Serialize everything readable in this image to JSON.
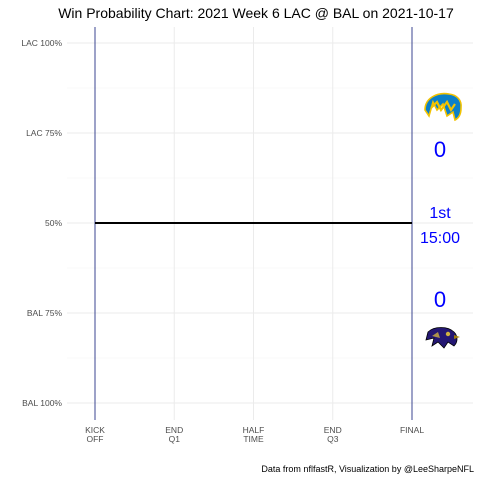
{
  "chart_data": {
    "type": "line",
    "title": "Win Probability Chart: 2021 Week 6 LAC @ BAL on 2021-10-17",
    "caption": "Data from nflfastR, Visualization by @LeeSharpeNFL",
    "y_ticks": [
      {
        "value": 1.0,
        "label": "LAC 100%"
      },
      {
        "value": 0.75,
        "label": "LAC 75%"
      },
      {
        "value": 0.5,
        "label": "50%"
      },
      {
        "value": 0.25,
        "label": "BAL 75%"
      },
      {
        "value": 0.0,
        "label": "BAL 100%"
      }
    ],
    "x_ticks": [
      {
        "value": 3600,
        "label": [
          "KICK",
          "OFF"
        ]
      },
      {
        "value": 2700,
        "label": [
          "END",
          "Q1"
        ]
      },
      {
        "value": 1800,
        "label": [
          "HALF",
          "TIME"
        ]
      },
      {
        "value": 900,
        "label": [
          "END",
          "Q3"
        ]
      },
      {
        "value": 0,
        "label": [
          "FINAL"
        ]
      }
    ],
    "xlim": [
      3600,
      0
    ],
    "ylim": [
      0,
      1
    ],
    "grid": true,
    "series": [
      {
        "values": [
          {
            "x": 3600,
            "y": 0.5
          },
          {
            "x": 0,
            "y": 0.5
          }
        ],
        "color": "#000000"
      }
    ],
    "vlines": [
      3600,
      0
    ],
    "vline_color": "#3b4590",
    "score_color": "#0000ff",
    "home_score": "0",
    "away_score": "0",
    "period": "1st",
    "clock": "15:00",
    "away_logo": "chargers-bolt-logo",
    "home_logo": "ravens-logo"
  }
}
